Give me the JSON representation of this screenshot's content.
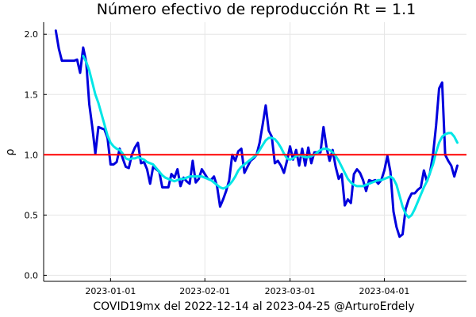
{
  "chart_data": {
    "type": "line",
    "title": "Número efectivo de reproducción  Rt = 1.1",
    "xlabel": "COVID19mx del 2022-12-14 al 2023-04-25 @ArturoErdely",
    "ylabel": "ρ",
    "x_start": "2022-12-14",
    "x_end": "2023-04-25",
    "xlim": [
      "2022-12-10",
      "2023-04-28"
    ],
    "ylim": [
      -0.05,
      2.1
    ],
    "x_ticks": [
      {
        "date": "2023-01-01",
        "label": "2023-01-01"
      },
      {
        "date": "2023-02-01",
        "label": "2023-02-01"
      },
      {
        "date": "2023-03-01",
        "label": "2023-03-01"
      },
      {
        "date": "2023-04-01",
        "label": "2023-04-01"
      }
    ],
    "y_ticks": [
      {
        "value": 0.0,
        "label": "0.0"
      },
      {
        "value": 0.5,
        "label": "0.5"
      },
      {
        "value": 1.0,
        "label": "1.0"
      },
      {
        "value": 1.5,
        "label": "1.5"
      },
      {
        "value": 2.0,
        "label": "2.0"
      }
    ],
    "grid": true,
    "legend": "none",
    "reference_line": {
      "y": 1.0,
      "color": "#ff0000"
    },
    "series": [
      {
        "color": "#0000dd",
        "points": [
          [
            "2022-12-14",
            2.03
          ],
          [
            "2022-12-15",
            1.88
          ],
          [
            "2022-12-16",
            1.78
          ],
          [
            "2022-12-17",
            1.78
          ],
          [
            "2022-12-18",
            1.78
          ],
          [
            "2022-12-19",
            1.78
          ],
          [
            "2022-12-20",
            1.78
          ],
          [
            "2022-12-21",
            1.79
          ],
          [
            "2022-12-22",
            1.68
          ],
          [
            "2022-12-23",
            1.89
          ],
          [
            "2022-12-24",
            1.77
          ],
          [
            "2022-12-25",
            1.42
          ],
          [
            "2022-12-26",
            1.23
          ],
          [
            "2022-12-27",
            1.01
          ],
          [
            "2022-12-28",
            1.23
          ],
          [
            "2022-12-29",
            1.22
          ],
          [
            "2022-12-30",
            1.21
          ],
          [
            "2022-12-31",
            1.14
          ],
          [
            "2023-01-01",
            0.92
          ],
          [
            "2023-01-02",
            0.92
          ],
          [
            "2023-01-03",
            0.94
          ],
          [
            "2023-01-04",
            1.05
          ],
          [
            "2023-01-05",
            0.97
          ],
          [
            "2023-01-06",
            0.9
          ],
          [
            "2023-01-07",
            0.89
          ],
          [
            "2023-01-08",
            1.0
          ],
          [
            "2023-01-09",
            1.06
          ],
          [
            "2023-01-10",
            1.1
          ],
          [
            "2023-01-11",
            0.93
          ],
          [
            "2023-01-12",
            0.94
          ],
          [
            "2023-01-13",
            0.88
          ],
          [
            "2023-01-14",
            0.76
          ],
          [
            "2023-01-15",
            0.9
          ],
          [
            "2023-01-16",
            0.88
          ],
          [
            "2023-01-17",
            0.86
          ],
          [
            "2023-01-18",
            0.73
          ],
          [
            "2023-01-19",
            0.73
          ],
          [
            "2023-01-20",
            0.73
          ],
          [
            "2023-01-21",
            0.84
          ],
          [
            "2023-01-22",
            0.81
          ],
          [
            "2023-01-23",
            0.88
          ],
          [
            "2023-01-24",
            0.74
          ],
          [
            "2023-01-25",
            0.81
          ],
          [
            "2023-01-26",
            0.78
          ],
          [
            "2023-01-27",
            0.76
          ],
          [
            "2023-01-28",
            0.95
          ],
          [
            "2023-01-29",
            0.77
          ],
          [
            "2023-01-30",
            0.8
          ],
          [
            "2023-01-31",
            0.88
          ],
          [
            "2023-02-01",
            0.84
          ],
          [
            "2023-02-02",
            0.8
          ],
          [
            "2023-02-03",
            0.79
          ],
          [
            "2023-02-04",
            0.82
          ],
          [
            "2023-02-05",
            0.74
          ],
          [
            "2023-02-06",
            0.57
          ],
          [
            "2023-02-07",
            0.63
          ],
          [
            "2023-02-08",
            0.7
          ],
          [
            "2023-02-09",
            0.79
          ],
          [
            "2023-02-10",
            1.0
          ],
          [
            "2023-02-11",
            0.95
          ],
          [
            "2023-02-12",
            1.03
          ],
          [
            "2023-02-13",
            1.05
          ],
          [
            "2023-02-14",
            0.85
          ],
          [
            "2023-02-15",
            0.9
          ],
          [
            "2023-02-16",
            0.95
          ],
          [
            "2023-02-17",
            0.97
          ],
          [
            "2023-02-18",
            1.0
          ],
          [
            "2023-02-19",
            1.1
          ],
          [
            "2023-02-20",
            1.25
          ],
          [
            "2023-02-21",
            1.41
          ],
          [
            "2023-02-22",
            1.2
          ],
          [
            "2023-02-23",
            1.15
          ],
          [
            "2023-02-24",
            0.93
          ],
          [
            "2023-02-25",
            0.95
          ],
          [
            "2023-02-26",
            0.91
          ],
          [
            "2023-02-27",
            0.85
          ],
          [
            "2023-02-28",
            0.95
          ],
          [
            "2023-03-01",
            1.07
          ],
          [
            "2023-03-02",
            0.96
          ],
          [
            "2023-03-03",
            1.04
          ],
          [
            "2023-03-04",
            0.91
          ],
          [
            "2023-03-05",
            1.05
          ],
          [
            "2023-03-06",
            0.91
          ],
          [
            "2023-03-07",
            1.06
          ],
          [
            "2023-03-08",
            0.93
          ],
          [
            "2023-03-09",
            1.02
          ],
          [
            "2023-03-10",
            1.02
          ],
          [
            "2023-03-11",
            1.02
          ],
          [
            "2023-03-12",
            1.23
          ],
          [
            "2023-03-13",
            1.06
          ],
          [
            "2023-03-14",
            0.95
          ],
          [
            "2023-03-15",
            1.04
          ],
          [
            "2023-03-16",
            0.9
          ],
          [
            "2023-03-17",
            0.8
          ],
          [
            "2023-03-18",
            0.84
          ],
          [
            "2023-03-19",
            0.58
          ],
          [
            "2023-03-20",
            0.63
          ],
          [
            "2023-03-21",
            0.6
          ],
          [
            "2023-03-22",
            0.84
          ],
          [
            "2023-03-23",
            0.88
          ],
          [
            "2023-03-24",
            0.85
          ],
          [
            "2023-03-25",
            0.79
          ],
          [
            "2023-03-26",
            0.7
          ],
          [
            "2023-03-27",
            0.79
          ],
          [
            "2023-03-28",
            0.78
          ],
          [
            "2023-03-29",
            0.79
          ],
          [
            "2023-03-30",
            0.76
          ],
          [
            "2023-03-31",
            0.79
          ],
          [
            "2023-04-01",
            0.87
          ],
          [
            "2023-04-02",
            0.99
          ],
          [
            "2023-04-03",
            0.86
          ],
          [
            "2023-04-04",
            0.53
          ],
          [
            "2023-04-05",
            0.4
          ],
          [
            "2023-04-06",
            0.32
          ],
          [
            "2023-04-07",
            0.34
          ],
          [
            "2023-04-08",
            0.55
          ],
          [
            "2023-04-09",
            0.63
          ],
          [
            "2023-04-10",
            0.68
          ],
          [
            "2023-04-11",
            0.68
          ],
          [
            "2023-04-12",
            0.71
          ],
          [
            "2023-04-13",
            0.73
          ],
          [
            "2023-04-14",
            0.87
          ],
          [
            "2023-04-15",
            0.78
          ],
          [
            "2023-04-16",
            0.85
          ],
          [
            "2023-04-17",
            1.0
          ],
          [
            "2023-04-18",
            1.24
          ],
          [
            "2023-04-19",
            1.55
          ],
          [
            "2023-04-20",
            1.6
          ],
          [
            "2023-04-21",
            1.0
          ],
          [
            "2023-04-22",
            0.95
          ],
          [
            "2023-04-23",
            0.91
          ],
          [
            "2023-04-24",
            0.82
          ],
          [
            "2023-04-25",
            0.91
          ]
        ]
      },
      {
        "color": "#00e6e6",
        "points": [
          [
            "2022-12-23",
            1.82
          ],
          [
            "2022-12-24",
            1.77
          ],
          [
            "2022-12-25",
            1.7
          ],
          [
            "2022-12-26",
            1.6
          ],
          [
            "2022-12-27",
            1.5
          ],
          [
            "2022-12-28",
            1.43
          ],
          [
            "2022-12-29",
            1.34
          ],
          [
            "2022-12-30",
            1.25
          ],
          [
            "2022-12-31",
            1.16
          ],
          [
            "2023-01-01",
            1.1
          ],
          [
            "2023-01-02",
            1.07
          ],
          [
            "2023-01-03",
            1.05
          ],
          [
            "2023-01-04",
            1.04
          ],
          [
            "2023-01-05",
            1.01
          ],
          [
            "2023-01-06",
            0.97
          ],
          [
            "2023-01-07",
            0.96
          ],
          [
            "2023-01-08",
            0.97
          ],
          [
            "2023-01-09",
            0.97
          ],
          [
            "2023-01-10",
            0.98
          ],
          [
            "2023-01-11",
            0.97
          ],
          [
            "2023-01-12",
            0.96
          ],
          [
            "2023-01-13",
            0.94
          ],
          [
            "2023-01-14",
            0.93
          ],
          [
            "2023-01-15",
            0.92
          ],
          [
            "2023-01-16",
            0.89
          ],
          [
            "2023-01-17",
            0.86
          ],
          [
            "2023-01-18",
            0.83
          ],
          [
            "2023-01-19",
            0.81
          ],
          [
            "2023-01-20",
            0.8
          ],
          [
            "2023-01-21",
            0.79
          ],
          [
            "2023-01-22",
            0.78
          ],
          [
            "2023-01-23",
            0.79
          ],
          [
            "2023-01-24",
            0.8
          ],
          [
            "2023-01-25",
            0.8
          ],
          [
            "2023-01-26",
            0.81
          ],
          [
            "2023-01-27",
            0.82
          ],
          [
            "2023-01-28",
            0.82
          ],
          [
            "2023-01-29",
            0.82
          ],
          [
            "2023-01-30",
            0.82
          ],
          [
            "2023-01-31",
            0.82
          ],
          [
            "2023-02-01",
            0.81
          ],
          [
            "2023-02-02",
            0.8
          ],
          [
            "2023-02-03",
            0.79
          ],
          [
            "2023-02-04",
            0.77
          ],
          [
            "2023-02-05",
            0.75
          ],
          [
            "2023-02-06",
            0.73
          ],
          [
            "2023-02-07",
            0.72
          ],
          [
            "2023-02-08",
            0.73
          ],
          [
            "2023-02-09",
            0.75
          ],
          [
            "2023-02-10",
            0.78
          ],
          [
            "2023-02-11",
            0.82
          ],
          [
            "2023-02-12",
            0.87
          ],
          [
            "2023-02-13",
            0.9
          ],
          [
            "2023-02-14",
            0.92
          ],
          [
            "2023-02-15",
            0.94
          ],
          [
            "2023-02-16",
            0.96
          ],
          [
            "2023-02-17",
            0.98
          ],
          [
            "2023-02-18",
            1.0
          ],
          [
            "2023-02-19",
            1.04
          ],
          [
            "2023-02-20",
            1.08
          ],
          [
            "2023-02-21",
            1.12
          ],
          [
            "2023-02-22",
            1.14
          ],
          [
            "2023-02-23",
            1.14
          ],
          [
            "2023-02-24",
            1.13
          ],
          [
            "2023-02-25",
            1.1
          ],
          [
            "2023-02-26",
            1.06
          ],
          [
            "2023-02-27",
            1.01
          ],
          [
            "2023-02-28",
            0.97
          ],
          [
            "2023-03-01",
            0.96
          ],
          [
            "2023-03-02",
            0.97
          ],
          [
            "2023-03-03",
            0.99
          ],
          [
            "2023-03-04",
            1.0
          ],
          [
            "2023-03-05",
            0.99
          ],
          [
            "2023-03-06",
            0.98
          ],
          [
            "2023-03-07",
            0.98
          ],
          [
            "2023-03-08",
            0.99
          ],
          [
            "2023-03-09",
            1.0
          ],
          [
            "2023-03-10",
            1.02
          ],
          [
            "2023-03-11",
            1.04
          ],
          [
            "2023-03-12",
            1.05
          ],
          [
            "2023-03-13",
            1.05
          ],
          [
            "2023-03-14",
            1.04
          ],
          [
            "2023-03-15",
            1.02
          ],
          [
            "2023-03-16",
            0.99
          ],
          [
            "2023-03-17",
            0.95
          ],
          [
            "2023-03-18",
            0.9
          ],
          [
            "2023-03-19",
            0.85
          ],
          [
            "2023-03-20",
            0.8
          ],
          [
            "2023-03-21",
            0.77
          ],
          [
            "2023-03-22",
            0.75
          ],
          [
            "2023-03-23",
            0.74
          ],
          [
            "2023-03-24",
            0.74
          ],
          [
            "2023-03-25",
            0.74
          ],
          [
            "2023-03-26",
            0.75
          ],
          [
            "2023-03-27",
            0.76
          ],
          [
            "2023-03-28",
            0.77
          ],
          [
            "2023-03-29",
            0.78
          ],
          [
            "2023-03-30",
            0.79
          ],
          [
            "2023-03-31",
            0.79
          ],
          [
            "2023-04-01",
            0.8
          ],
          [
            "2023-04-02",
            0.81
          ],
          [
            "2023-04-03",
            0.82
          ],
          [
            "2023-04-04",
            0.8
          ],
          [
            "2023-04-05",
            0.75
          ],
          [
            "2023-04-06",
            0.66
          ],
          [
            "2023-04-07",
            0.57
          ],
          [
            "2023-04-08",
            0.51
          ],
          [
            "2023-04-09",
            0.48
          ],
          [
            "2023-04-10",
            0.5
          ],
          [
            "2023-04-11",
            0.55
          ],
          [
            "2023-04-12",
            0.61
          ],
          [
            "2023-04-13",
            0.67
          ],
          [
            "2023-04-14",
            0.73
          ],
          [
            "2023-04-15",
            0.78
          ],
          [
            "2023-04-16",
            0.85
          ],
          [
            "2023-04-17",
            0.92
          ],
          [
            "2023-04-18",
            1.02
          ],
          [
            "2023-04-19",
            1.1
          ],
          [
            "2023-04-20",
            1.15
          ],
          [
            "2023-04-21",
            1.17
          ],
          [
            "2023-04-22",
            1.18
          ],
          [
            "2023-04-23",
            1.18
          ],
          [
            "2023-04-24",
            1.15
          ],
          [
            "2023-04-25",
            1.1
          ]
        ]
      }
    ]
  }
}
